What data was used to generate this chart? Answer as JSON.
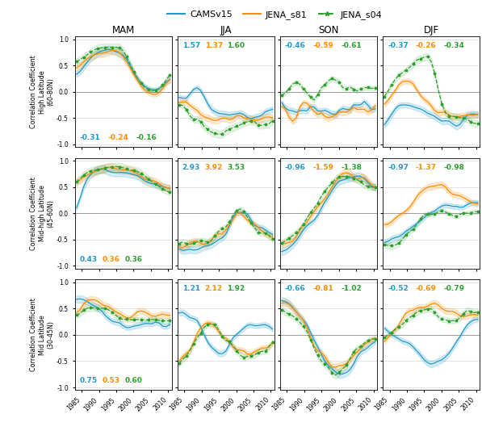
{
  "colors": {
    "CAMSv15": "#1f9bc9",
    "JENA_s81": "#ff8c00",
    "JENA_s04": "#2ca02c"
  },
  "legend_labels": [
    "CAMSv15",
    "JENA_s81",
    "JENA_s04"
  ],
  "seasons": [
    "MAM",
    "JJA",
    "SON",
    "DJF"
  ],
  "ylabels": [
    "Correlation Coefficient\nHigh Latitude\n(60-80N)",
    "Correlation Coefficient\nMid-high Latitude\n(45-60N)",
    "Correlation Coefficient\nMid Latitude\n(30-45N)"
  ],
  "annotations": {
    "row0": {
      "MAM": [
        "-0.31",
        "-0.24",
        "-0.16",
        "bottom"
      ],
      "JJA": [
        "1.57",
        "1.37",
        "1.60",
        "top"
      ],
      "SON": [
        "-0.46",
        "-0.59",
        "-0.61",
        "top"
      ],
      "DJF": [
        "-0.37",
        "-0.26",
        "-0.34",
        "top"
      ]
    },
    "row1": {
      "MAM": [
        "0.43",
        "0.36",
        "0.36",
        "bottom"
      ],
      "JJA": [
        "2.93",
        "3.92",
        "3.53",
        "top"
      ],
      "SON": [
        "-0.96",
        "-1.59",
        "-1.38",
        "top"
      ],
      "DJF": [
        "-0.97",
        "-1.37",
        "-0.98",
        "top"
      ]
    },
    "row2": {
      "MAM": [
        "0.75",
        "0.53",
        "0.60",
        "bottom"
      ],
      "JJA": [
        "1.21",
        "2.12",
        "1.92",
        "top"
      ],
      "SON": [
        "-0.66",
        "-0.81",
        "-1.02",
        "top"
      ],
      "DJF": [
        "-0.52",
        "-0.69",
        "-0.79",
        "top"
      ]
    }
  },
  "xlim": [
    1983,
    2011
  ],
  "ylim": [
    -1.05,
    1.05
  ],
  "yticks": [
    -1.0,
    -0.5,
    0.0,
    0.5,
    1.0
  ],
  "xticks": [
    1985,
    1990,
    1995,
    2000,
    2005,
    2010
  ],
  "xtick_labels": [
    "1985",
    "1990",
    "1995",
    "2000",
    "2005",
    "2010"
  ]
}
